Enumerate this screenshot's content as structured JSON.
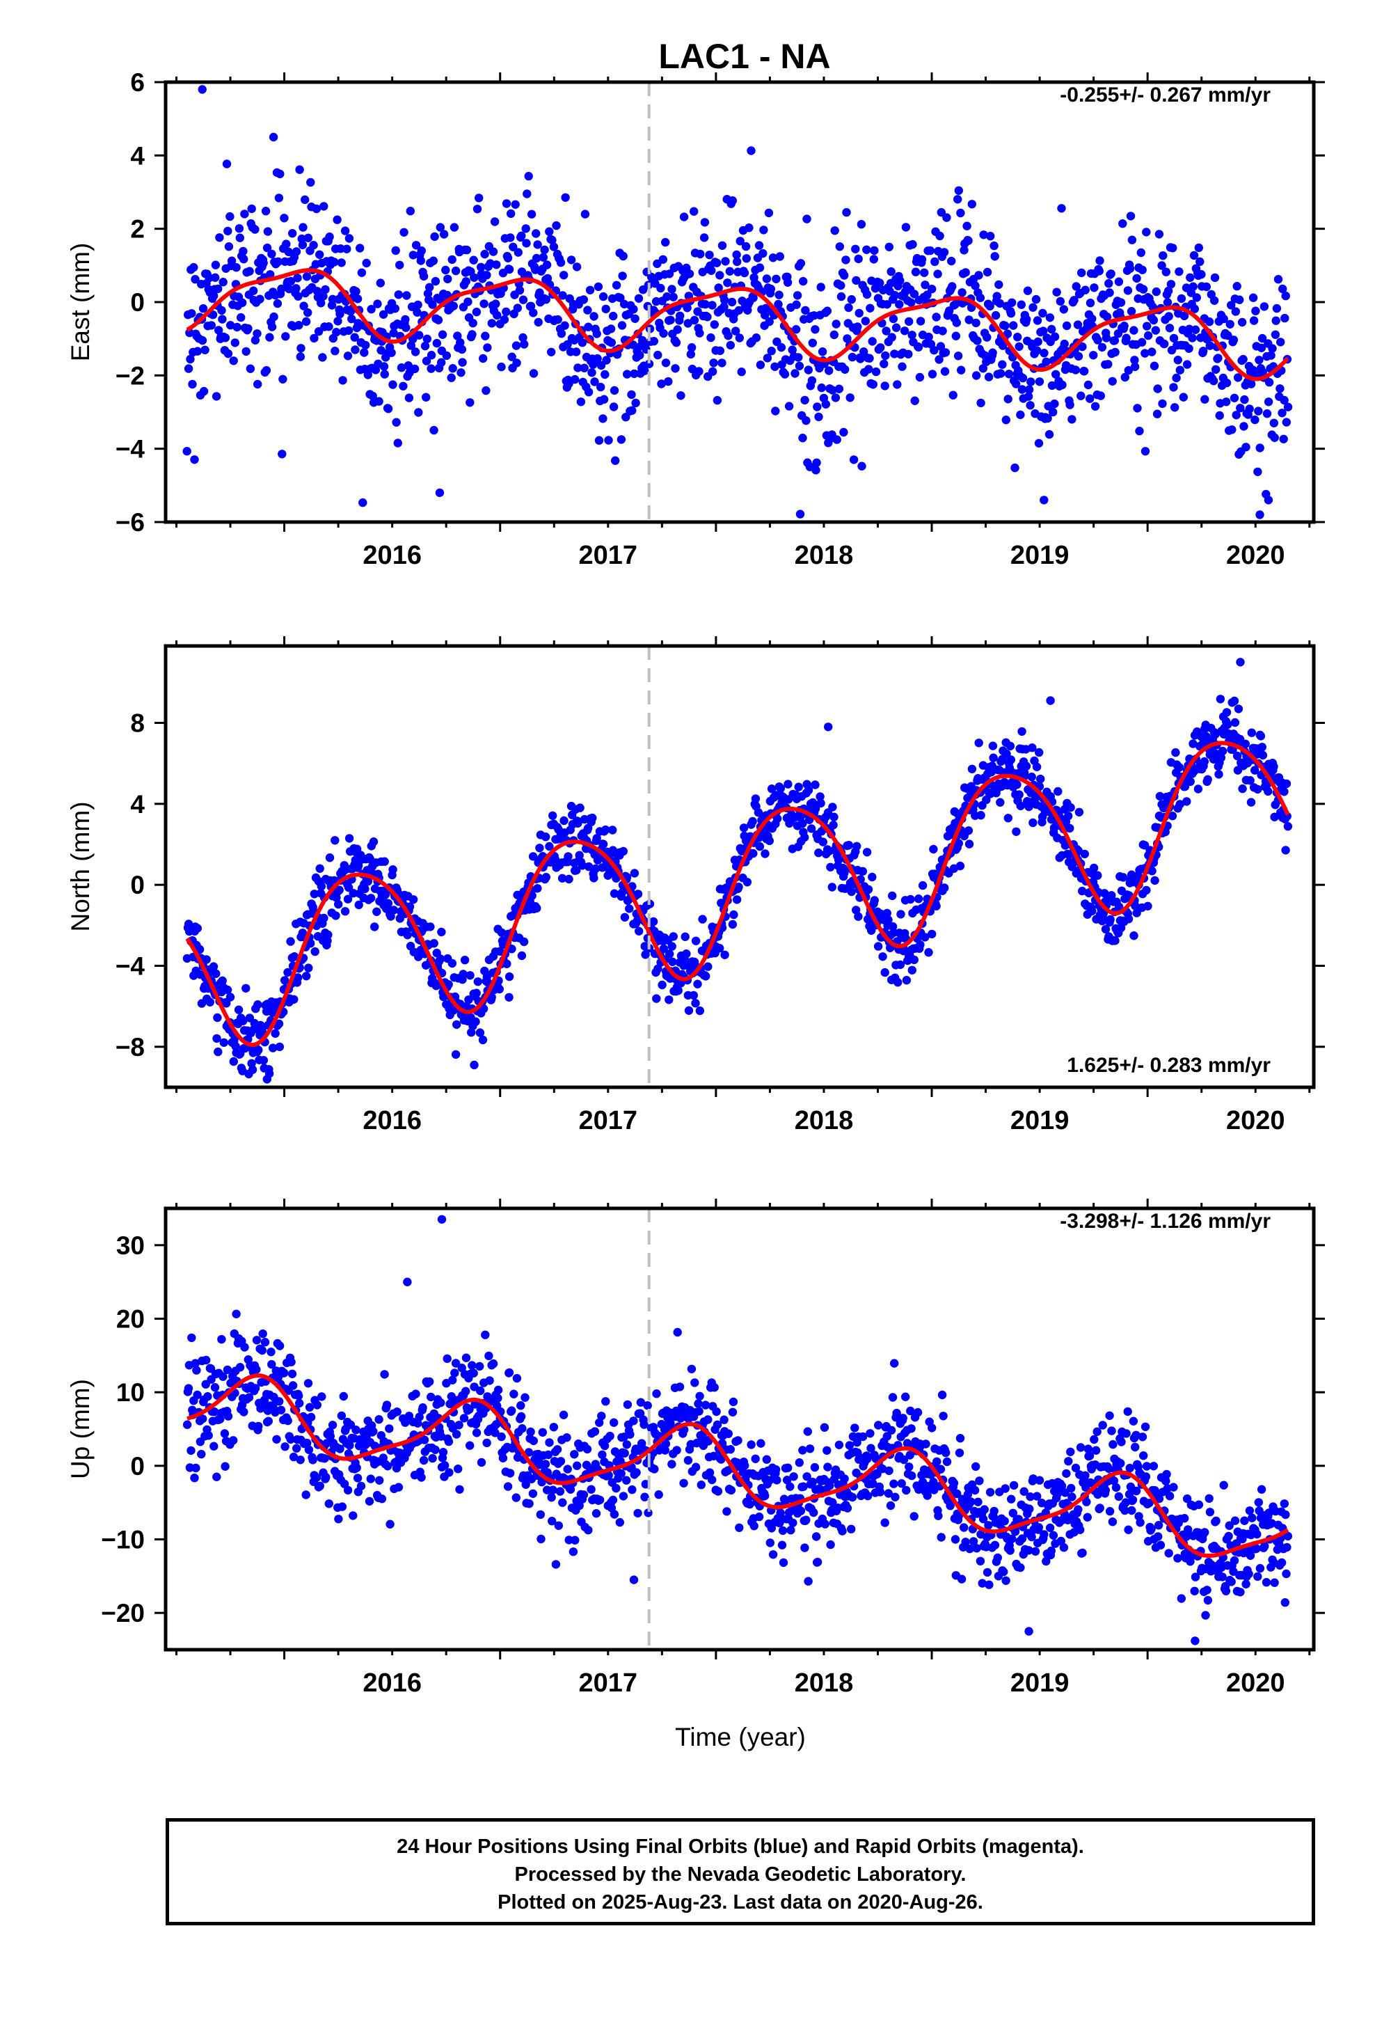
{
  "title": "LAC1 - NA",
  "xlabel": "Time (year)",
  "footer": [
    "24 Hour Positions Using Final Orbits (blue) and Rapid Orbits (magenta).",
    "Processed by the Nevada Geodetic Laboratory.",
    "Plotted on 2025-Aug-23. Last data on 2020-Aug-26."
  ],
  "colors": {
    "final_orbits": "#0000ff",
    "rapid_orbits": "#ff00ff",
    "model_fit": "#ff0000",
    "equipment_change": "#c0c0c0"
  },
  "chart_data": [
    {
      "type": "scatter",
      "name": "east",
      "ylabel": "East (mm)",
      "rate_label": "-0.255+/- 0.267 mm/yr",
      "xlim": [
        2015.45,
        2020.77
      ],
      "ylim": [
        -6,
        6
      ],
      "xticks": [
        2016,
        2017,
        2018,
        2019,
        2020
      ],
      "yticks": [
        -6,
        -4,
        -2,
        0,
        2,
        4,
        6
      ],
      "ytick_labels": [
        "−6",
        "−4",
        "−2",
        "0",
        "2",
        "4",
        "6"
      ],
      "x_range": [
        2015.55,
        2020.65
      ],
      "trend": [
        0.25,
        -0.255
      ],
      "annual": [
        0.85,
        0.28,
        1.0
      ],
      "semiannual": [
        0.25,
        0.1,
        2.0
      ],
      "noise_sd": 1.2,
      "series": [
        {
          "name": "",
          "kind": "daily positions"
        },
        {
          "name": "",
          "kind": "model fit"
        }
      ],
      "dashed_vline_x": 2017.69,
      "outliers": [
        [
          2015.62,
          5.8
        ],
        [
          2016.72,
          -5.2
        ],
        [
          2019.52,
          -5.4
        ],
        [
          2020.52,
          -5.8
        ],
        [
          2020.56,
          -5.4
        ],
        [
          2015.95,
          4.5
        ]
      ],
      "grid": false,
      "legend": "none"
    },
    {
      "type": "scatter",
      "name": "north",
      "ylabel": "North (mm)",
      "rate_label": "1.625+/- 0.283 mm/yr",
      "xlim": [
        2015.45,
        2020.77
      ],
      "ylim": [
        -10,
        11.8
      ],
      "xticks": [
        2016,
        2017,
        2018,
        2019,
        2020
      ],
      "yticks": [
        -8,
        -4,
        0,
        4,
        8
      ],
      "ytick_labels": [
        "−8",
        "−4",
        "0",
        "4",
        "8"
      ],
      "x_range": [
        2015.55,
        2020.65
      ],
      "trend": [
        -4.2,
        1.625
      ],
      "annual": [
        3.8,
        0.6,
        1.0
      ],
      "semiannual": [
        0.5,
        0.5,
        2.0
      ],
      "noise_sd": 0.9,
      "series": [
        {
          "name": "",
          "kind": "daily positions"
        },
        {
          "name": "",
          "kind": "model fit"
        }
      ],
      "dashed_vline_x": 2017.69,
      "outliers": [
        [
          2016.88,
          -8.9
        ],
        [
          2015.92,
          -9.6
        ],
        [
          2020.43,
          11.0
        ],
        [
          2019.55,
          9.1
        ],
        [
          2018.52,
          7.8
        ]
      ],
      "grid": false,
      "legend": "none"
    },
    {
      "type": "scatter",
      "name": "up",
      "ylabel": "Up (mm)",
      "rate_label": "-3.298+/- 1.126 mm/yr",
      "xlim": [
        2015.45,
        2020.77
      ],
      "ylim": [
        -25,
        35
      ],
      "xticks": [
        2016,
        2017,
        2018,
        2019,
        2020
      ],
      "yticks": [
        -20,
        -10,
        0,
        10,
        20,
        30
      ],
      "ytick_labels": [
        "−20",
        "−10",
        "0",
        "10",
        "20",
        "30"
      ],
      "x_range": [
        2015.55,
        2020.65
      ],
      "trend": [
        8.0,
        -3.298
      ],
      "annual": [
        4.6,
        0.1,
        1.0
      ],
      "semiannual": [
        1.2,
        0.3,
        2.0
      ],
      "noise_sd": 3.8,
      "series": [
        {
          "name": "",
          "kind": "daily positions"
        },
        {
          "name": "",
          "kind": "model fit"
        }
      ],
      "dashed_vline_x": 2017.69,
      "outliers": [
        [
          2016.73,
          33.5
        ],
        [
          2019.45,
          -22.5
        ],
        [
          2020.22,
          -23.8
        ],
        [
          2017.62,
          -15.5
        ],
        [
          2016.57,
          25.0
        ]
      ],
      "grid": false,
      "legend": "none"
    }
  ]
}
